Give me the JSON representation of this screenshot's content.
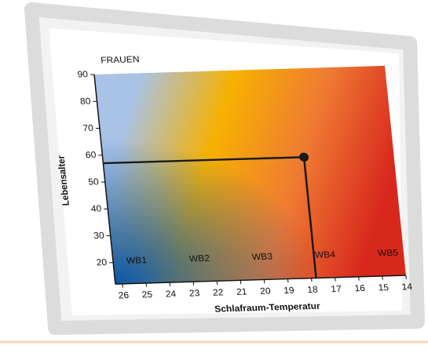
{
  "chart_data": {
    "type": "scatter",
    "title": "FRAUEN",
    "x_label": "Schlafraum-Temperatur",
    "y_label": "Lebensalter",
    "x": [
      17.8
    ],
    "values": [
      57
    ],
    "color": "#1a1a1a",
    "xlim": [
      26.3,
      14
    ],
    "xticks": [
      26,
      25,
      24,
      23,
      22,
      21,
      20,
      19,
      18,
      17,
      16,
      15,
      14
    ],
    "ylim": [
      12,
      90
    ],
    "yticks": [
      20,
      30,
      40,
      50,
      60,
      70,
      80,
      90
    ],
    "zones": [
      "WB1",
      "WB2",
      "WB3",
      "WB4",
      "WB5"
    ],
    "zone_colors": [
      "#a9c3e6",
      "#f6b100",
      "#ef7a33",
      "#d8281d"
    ]
  }
}
